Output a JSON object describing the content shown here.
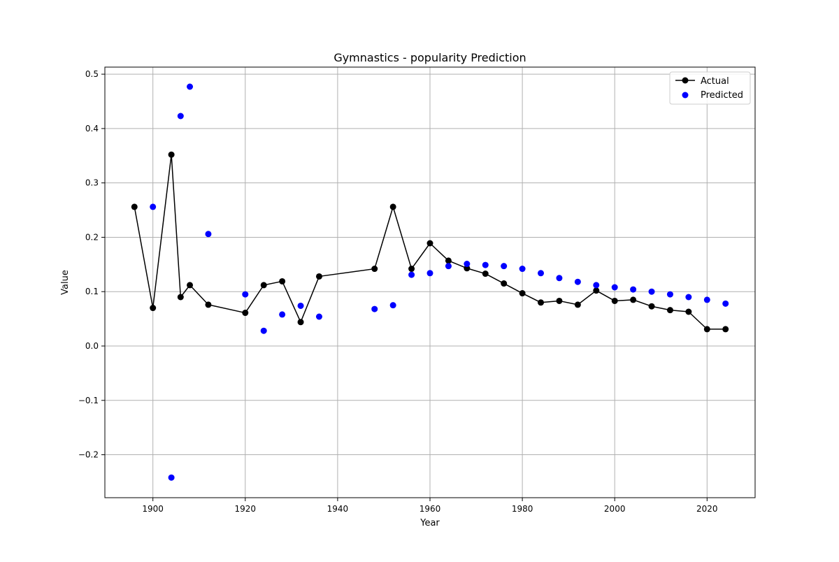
{
  "chart_data": {
    "type": "line",
    "title": "Gymnastics - popularity Prediction",
    "xlabel": "Year",
    "ylabel": "Value",
    "xlim": [
      1889.6,
      2030.4
    ],
    "ylim": [
      -0.279,
      0.513
    ],
    "xticks": [
      1900,
      1920,
      1940,
      1960,
      1980,
      2000,
      2020
    ],
    "xtick_labels": [
      "1900",
      "1920",
      "1940",
      "1960",
      "1980",
      "2000",
      "2020"
    ],
    "yticks": [
      -0.2,
      -0.1,
      0.0,
      0.1,
      0.2,
      0.3,
      0.4,
      0.5
    ],
    "ytick_labels": [
      "−0.2",
      "−0.1",
      "0.0",
      "0.1",
      "0.2",
      "0.3",
      "0.4",
      "0.5"
    ],
    "grid": true,
    "legend_position": "top-right",
    "series": [
      {
        "name": "Actual",
        "style": "line-marker",
        "color": "#000000",
        "x": [
          1896,
          1900,
          1904,
          1906,
          1908,
          1912,
          1920,
          1924,
          1928,
          1932,
          1936,
          1948,
          1952,
          1956,
          1960,
          1964,
          1968,
          1972,
          1976,
          1980,
          1984,
          1988,
          1992,
          1996,
          2000,
          2004,
          2008,
          2012,
          2016,
          2020,
          2024
        ],
        "y": [
          0.256,
          0.07,
          0.352,
          0.09,
          0.112,
          0.076,
          0.061,
          0.112,
          0.119,
          0.044,
          0.128,
          0.142,
          0.256,
          0.142,
          0.189,
          0.157,
          0.143,
          0.133,
          0.115,
          0.097,
          0.08,
          0.083,
          0.076,
          0.102,
          0.083,
          0.085,
          0.073,
          0.066,
          0.063,
          0.031,
          0.031
        ]
      },
      {
        "name": "Predicted",
        "style": "scatter",
        "color": "#0000ff",
        "x": [
          1900,
          1904,
          1906,
          1908,
          1912,
          1920,
          1924,
          1928,
          1932,
          1936,
          1948,
          1952,
          1956,
          1960,
          1964,
          1968,
          1972,
          1976,
          1980,
          1984,
          1988,
          1992,
          1996,
          2000,
          2004,
          2008,
          2012,
          2016,
          2020,
          2024
        ],
        "y": [
          0.256,
          -0.242,
          0.423,
          0.477,
          0.206,
          0.095,
          0.028,
          0.058,
          0.074,
          0.054,
          0.068,
          0.075,
          0.131,
          0.134,
          0.147,
          0.151,
          0.149,
          0.147,
          0.142,
          0.134,
          0.125,
          0.118,
          0.112,
          0.108,
          0.104,
          0.1,
          0.095,
          0.09,
          0.085,
          0.078
        ]
      }
    ]
  }
}
